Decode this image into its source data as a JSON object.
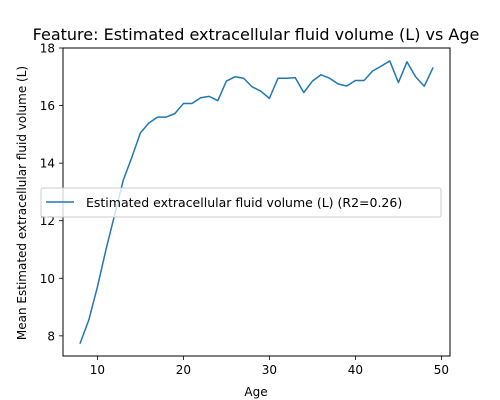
{
  "chart_data": {
    "type": "line",
    "title": "Feature: Estimated extracellular fluid volume (L) vs Age",
    "xlabel": "Age",
    "ylabel": "Mean Estimated extracellular fluid volume (L)",
    "xlim": [
      6.0,
      51.0
    ],
    "ylim": [
      7.3,
      18.0
    ],
    "xticks": [
      10,
      20,
      30,
      40,
      50
    ],
    "yticks": [
      8,
      10,
      12,
      14,
      16,
      18
    ],
    "grid": false,
    "legend_position": "center",
    "series": [
      {
        "name": "Estimated extracellular fluid volume (L) (R2=0.26)",
        "color": "#1f77b4",
        "x": [
          8,
          9,
          10,
          11,
          12,
          13,
          14,
          15,
          16,
          17,
          18,
          19,
          20,
          21,
          22,
          23,
          24,
          25,
          26,
          27,
          28,
          29,
          30,
          31,
          32,
          33,
          34,
          35,
          36,
          37,
          38,
          39,
          40,
          41,
          42,
          43,
          44,
          45,
          46,
          47,
          48,
          49
        ],
        "y": [
          7.75,
          8.55,
          9.7,
          11.0,
          12.2,
          13.4,
          14.2,
          15.05,
          15.4,
          15.6,
          15.6,
          15.72,
          16.07,
          16.07,
          16.27,
          16.32,
          16.17,
          16.85,
          17.0,
          16.95,
          16.65,
          16.5,
          16.25,
          16.95,
          16.95,
          16.97,
          16.45,
          16.85,
          17.07,
          16.95,
          16.75,
          16.68,
          16.87,
          16.87,
          17.2,
          17.37,
          17.55,
          16.8,
          17.52,
          17.0,
          16.67,
          17.3
        ]
      }
    ]
  }
}
